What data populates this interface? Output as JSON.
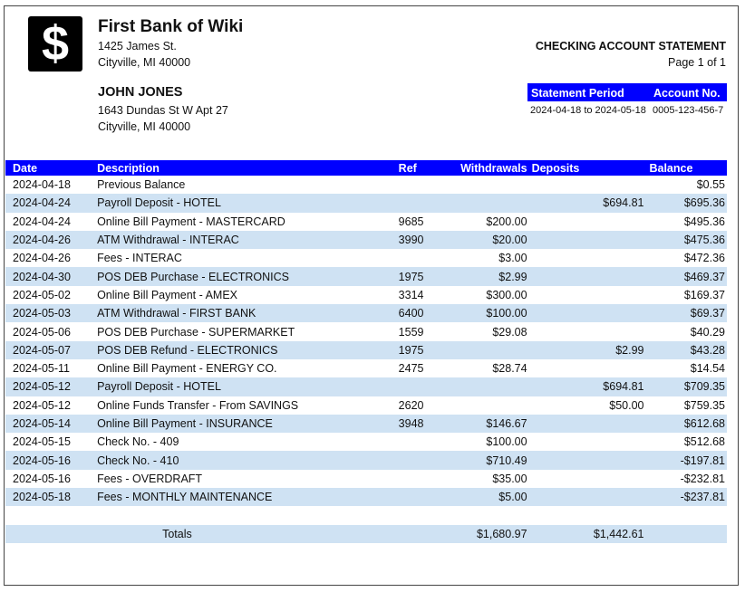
{
  "bank": {
    "logo_glyph": "$",
    "name": "First Bank of Wiki",
    "address1": "1425 James St.",
    "address2": "Cityville, MI 40000"
  },
  "customer": {
    "name": "JOHN JONES",
    "address1": "1643 Dundas St W Apt 27",
    "address2": "Cityville, MI 40000"
  },
  "statement": {
    "title": "CHECKING ACCOUNT STATEMENT",
    "page": "Page 1 of 1",
    "period_label": "Statement Period",
    "account_label": "Account No.",
    "period": "2024-04-18 to 2024-05-18",
    "account": "0005-123-456-7"
  },
  "colors": {
    "header_blue": "#0000ff",
    "row_alt": "#cfe2f3"
  },
  "table": {
    "columns": [
      "Date",
      "Description",
      "Ref",
      "Withdrawals",
      "Deposits",
      "Balance"
    ],
    "rows": [
      [
        "2024-04-18",
        "Previous Balance",
        "",
        "",
        "",
        "$0.55"
      ],
      [
        "2024-04-24",
        "Payroll Deposit - HOTEL",
        "",
        "",
        "$694.81",
        "$695.36"
      ],
      [
        "2024-04-24",
        "Online Bill Payment - MASTERCARD",
        "9685",
        "$200.00",
        "",
        "$495.36"
      ],
      [
        "2024-04-26",
        "ATM Withdrawal - INTERAC",
        "3990",
        "$20.00",
        "",
        "$475.36"
      ],
      [
        "2024-04-26",
        "Fees - INTERAC",
        "",
        "$3.00",
        "",
        "$472.36"
      ],
      [
        "2024-04-30",
        "POS DEB Purchase - ELECTRONICS",
        "1975",
        "$2.99",
        "",
        "$469.37"
      ],
      [
        "2024-05-02",
        "Online Bill Payment - AMEX",
        "3314",
        "$300.00",
        "",
        "$169.37"
      ],
      [
        "2024-05-03",
        "ATM Withdrawal - FIRST BANK",
        "6400",
        "$100.00",
        "",
        "$69.37"
      ],
      [
        "2024-05-06",
        "POS DEB Purchase - SUPERMARKET",
        "1559",
        "$29.08",
        "",
        "$40.29"
      ],
      [
        "2024-05-07",
        "POS DEB Refund - ELECTRONICS",
        "1975",
        "",
        "$2.99",
        "$43.28"
      ],
      [
        "2024-05-11",
        "Online Bill Payment - ENERGY CO.",
        "2475",
        "$28.74",
        "",
        "$14.54"
      ],
      [
        "2024-05-12",
        "Payroll Deposit - HOTEL",
        "",
        "",
        "$694.81",
        "$709.35"
      ],
      [
        "2024-05-12",
        "Online Funds Transfer - From SAVINGS",
        "2620",
        "",
        "$50.00",
        "$759.35"
      ],
      [
        "2024-05-14",
        "Online Bill Payment - INSURANCE",
        "3948",
        "$146.67",
        "",
        "$612.68"
      ],
      [
        "2024-05-15",
        "Check No. - 409",
        "",
        "$100.00",
        "",
        "$512.68"
      ],
      [
        "2024-05-16",
        "Check No. - 410",
        "",
        "$710.49",
        "",
        "-$197.81"
      ],
      [
        "2024-05-16",
        "Fees - OVERDRAFT",
        "",
        "$35.00",
        "",
        "-$232.81"
      ],
      [
        "2024-05-18",
        "Fees - MONTHLY MAINTENANCE",
        "",
        "$5.00",
        "",
        "-$237.81"
      ],
      [
        "",
        "",
        "",
        "",
        "",
        ""
      ],
      [
        "",
        "",
        "",
        "",
        "",
        ""
      ]
    ],
    "totals": {
      "label": "Totals",
      "withdrawals": "$1,680.97",
      "deposits": "$1,442.61"
    }
  }
}
